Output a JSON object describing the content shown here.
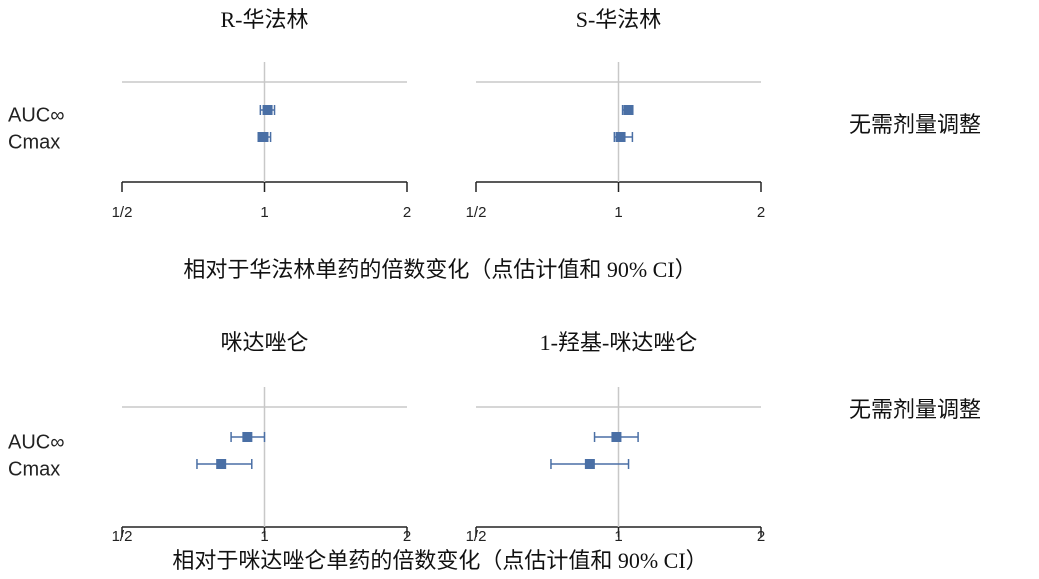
{
  "chart_data": [
    {
      "type": "forest",
      "title": "R-华法林",
      "categories": [
        "AUC∞",
        "Cmax"
      ],
      "values": [
        1.015,
        0.995
      ],
      "lower": [
        0.98,
        0.97
      ],
      "upper": [
        1.05,
        1.03
      ],
      "xlim": [
        0.5,
        2
      ],
      "xticks": [
        {
          "value": 0.5,
          "label": "1/2"
        },
        1,
        2
      ],
      "log_scale": true,
      "grid": true,
      "color": "#4a6fa5"
    },
    {
      "type": "forest",
      "title": "S-华法林",
      "values": [
        1.05,
        1.01
      ],
      "lower": [
        1.02,
        0.98
      ],
      "upper": [
        1.07,
        1.07
      ],
      "xlim": [
        0.5,
        2
      ],
      "xticks": [
        {
          "value": 0.5,
          "label": "1/2"
        },
        1,
        2
      ],
      "log_scale": true,
      "grid": true,
      "color": "#4a6fa5"
    },
    {
      "type": "forest",
      "title": "咪达唑仑",
      "categories": [
        "AUC∞",
        "Cmax"
      ],
      "values": [
        0.92,
        0.81
      ],
      "lower": [
        0.85,
        0.72
      ],
      "upper": [
        1.0,
        0.94
      ],
      "xlim": [
        0.5,
        2
      ],
      "xticks": [
        {
          "value": 0.5,
          "label": "1/2"
        },
        1,
        2
      ],
      "log_scale": true,
      "grid": true,
      "color": "#4a6fa5"
    },
    {
      "type": "forest",
      "title": "1-羟基-咪达唑仑",
      "values": [
        0.99,
        0.87
      ],
      "lower": [
        0.89,
        0.72
      ],
      "upper": [
        1.1,
        1.05
      ],
      "xlim": [
        0.5,
        2
      ],
      "xticks": [
        {
          "value": 0.5,
          "label": "1/2"
        },
        1,
        2
      ],
      "log_scale": true,
      "grid": true,
      "color": "#4a6fa5"
    }
  ],
  "captions": [
    "相对于华法林单药的倍数变化（点估计值和 90% CI）",
    "相对于咪达唑仑单药的倍数变化（点估计值和 90% CI）"
  ],
  "notes": [
    "无需剂量调整",
    "无需剂量调整"
  ]
}
